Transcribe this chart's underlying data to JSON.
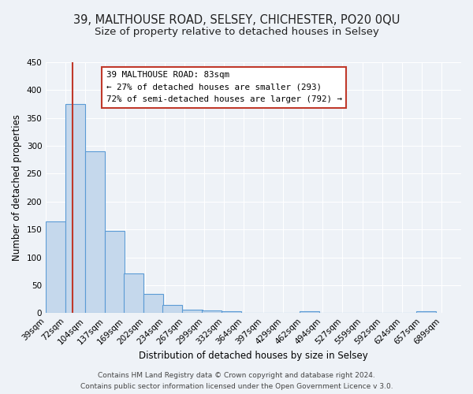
{
  "title1": "39, MALTHOUSE ROAD, SELSEY, CHICHESTER, PO20 0QU",
  "title2": "Size of property relative to detached houses in Selsey",
  "xlabel": "Distribution of detached houses by size in Selsey",
  "ylabel": "Number of detached properties",
  "bar_left_edges": [
    39,
    72,
    104,
    137,
    169,
    202,
    234,
    267,
    299,
    332,
    364,
    397,
    429,
    462,
    494,
    527,
    559,
    592,
    624,
    657
  ],
  "bar_heights": [
    165,
    375,
    290,
    147,
    71,
    34,
    15,
    6,
    5,
    3,
    0,
    0,
    0,
    3,
    0,
    0,
    0,
    0,
    0,
    3
  ],
  "bin_width": 33,
  "bar_color": "#c5d8ec",
  "bar_edge_color": "#5b9bd5",
  "reference_line_x": 83,
  "reference_line_color": "#c0392b",
  "ylim": [
    0,
    450
  ],
  "yticks": [
    0,
    50,
    100,
    150,
    200,
    250,
    300,
    350,
    400,
    450
  ],
  "xtick_labels": [
    "39sqm",
    "72sqm",
    "104sqm",
    "137sqm",
    "169sqm",
    "202sqm",
    "234sqm",
    "267sqm",
    "299sqm",
    "332sqm",
    "364sqm",
    "397sqm",
    "429sqm",
    "462sqm",
    "494sqm",
    "527sqm",
    "559sqm",
    "592sqm",
    "624sqm",
    "657sqm",
    "689sqm"
  ],
  "annotation_title": "39 MALTHOUSE ROAD: 83sqm",
  "annotation_line1": "← 27% of detached houses are smaller (293)",
  "annotation_line2": "72% of semi-detached houses are larger (792) →",
  "footer1": "Contains HM Land Registry data © Crown copyright and database right 2024.",
  "footer2": "Contains public sector information licensed under the Open Government Licence v 3.0.",
  "background_color": "#eef2f7",
  "grid_color": "#ffffff",
  "title_fontsize": 10.5,
  "subtitle_fontsize": 9.5,
  "axis_label_fontsize": 8.5,
  "tick_fontsize": 7.5,
  "footer_fontsize": 6.5
}
